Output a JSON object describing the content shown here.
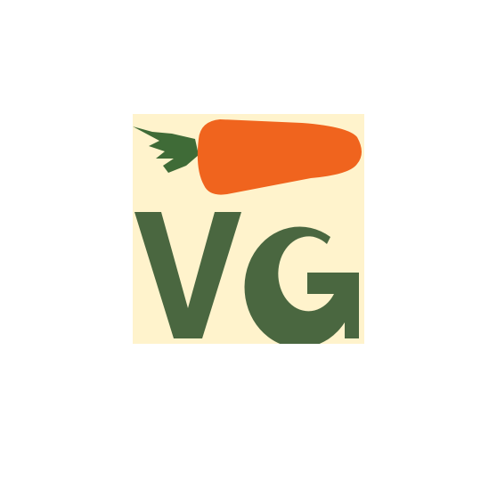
{
  "logo": {
    "lettering": "VG",
    "icon": "carrot-icon",
    "colors": {
      "background": "#FFF3CC",
      "letters": "#4A6740",
      "carrot": "#F0641E",
      "carrot_leaves": "#3F6B37"
    }
  }
}
